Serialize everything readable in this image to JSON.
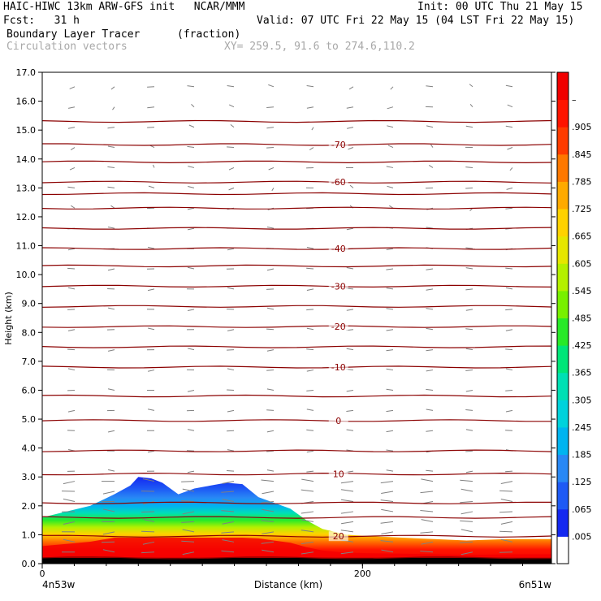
{
  "header": {
    "line1_left": "HAIC-HIWC 13km ARW-GFS init   NCAR/MMM",
    "line1_right": "Init: 00 UTC Thu 21 May 15",
    "line2_left": "Fcst:   31 h",
    "line2_right": "Valid: 07 UTC Fri 22 May 15 (04 LST Fri 22 May 15)",
    "line3_left": "Boundary Layer Tracer",
    "line3_units": "(fraction)",
    "line4_left": "Circulation vectors",
    "line4_right": "XY= 259.5, 91.6 to 274.6,110.2"
  },
  "chart_data": {
    "type": "heatmap",
    "title": "Boundary Layer Tracer",
    "units": "(fraction)",
    "xlabel": "Distance (km)",
    "ylabel": "Height (km)",
    "xlim": [
      0,
      318
    ],
    "ylim": [
      0,
      17
    ],
    "x_ticks": [
      "0",
      "200"
    ],
    "x_ticks_values": [
      0,
      200
    ],
    "x_endpoint_labels": [
      "4n53w",
      "6n51w"
    ],
    "y_ticks": [
      "0.0",
      "1.0",
      "2.0",
      "3.0",
      "4.0",
      "5.0",
      "6.0",
      "7.0",
      "8.0",
      "9.0",
      "10.0",
      "11.0",
      "12.0",
      "13.0",
      "14.0",
      "15.0",
      "16.0",
      "17.0"
    ],
    "colorbar": {
      "labels": [
        ".005",
        ".065",
        ".125",
        ".185",
        ".245",
        ".305",
        ".365",
        ".425",
        ".485",
        ".545",
        ".605",
        ".665",
        ".725",
        ".785",
        ".845",
        ".905",
        "–"
      ],
      "colors": [
        "#ffffff",
        "#1428f0",
        "#1e5af5",
        "#2888f5",
        "#00b4f0",
        "#00d2dc",
        "#00e0b4",
        "#00e678",
        "#28ea28",
        "#78f000",
        "#b4f000",
        "#e6e600",
        "#ffd200",
        "#ffaa00",
        "#ff7800",
        "#ff3c00",
        "#ff1400",
        "#f00000"
      ]
    },
    "temperature_contours": {
      "color": "#8b0000",
      "labels": [
        {
          "text": "-70",
          "value": -70,
          "height_km": 14.5
        },
        {
          "text": "-60",
          "value": -60,
          "height_km": 13.2
        },
        {
          "text": "-40",
          "value": -40,
          "height_km": 10.9
        },
        {
          "text": "-30",
          "value": -30,
          "height_km": 9.6
        },
        {
          "text": "-20",
          "value": -20,
          "height_km": 8.2
        },
        {
          "text": "-10",
          "value": -10,
          "height_km": 6.8
        },
        {
          "text": "0",
          "value": 0,
          "height_km": 4.95
        },
        {
          "text": "10",
          "value": 10,
          "height_km": 3.1
        },
        {
          "text": "20",
          "value": 20,
          "height_km": 0.95
        }
      ],
      "line_heights_km": [
        0.2,
        0.95,
        1.6,
        2.1,
        3.1,
        3.9,
        4.95,
        5.8,
        6.8,
        7.5,
        8.2,
        8.9,
        9.6,
        10.3,
        10.9,
        11.6,
        12.3,
        12.8,
        13.2,
        13.9,
        14.5,
        15.3
      ]
    },
    "tracer_top": {
      "x_km": [
        0,
        15,
        30,
        45,
        55,
        60,
        68,
        75,
        85,
        95,
        105,
        115,
        125,
        135,
        145,
        155,
        165,
        175,
        190,
        205,
        225,
        245,
        265,
        290,
        318
      ],
      "top_km": [
        1.6,
        1.8,
        2.0,
        2.4,
        2.7,
        3.0,
        2.95,
        2.8,
        2.4,
        2.6,
        2.7,
        2.8,
        2.75,
        2.3,
        2.1,
        1.9,
        1.5,
        1.2,
        1.0,
        0.95,
        0.9,
        0.85,
        0.8,
        0.85,
        0.85
      ]
    }
  }
}
